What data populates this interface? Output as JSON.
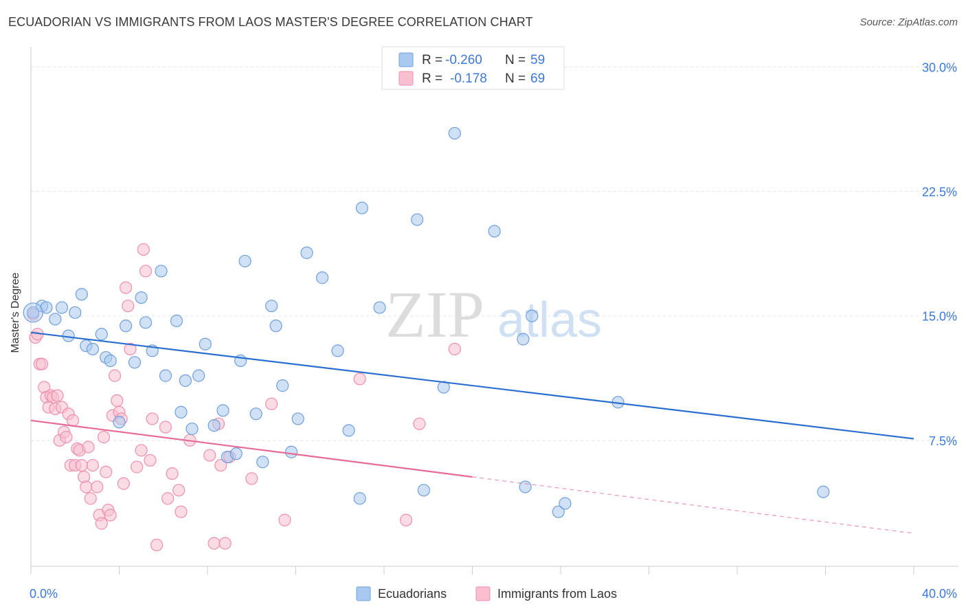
{
  "header": {
    "title": "ECUADORIAN VS IMMIGRANTS FROM LAOS MASTER'S DEGREE CORRELATION CHART",
    "source": "Source: ZipAtlas.com"
  },
  "watermark": {
    "part1": "ZIP",
    "part2": "atlas"
  },
  "colors": {
    "blue": "#6f9fdd",
    "blue_fill": "#a9c8ef",
    "blue_line": "#2a6fd0",
    "pink": "#ee8fac",
    "pink_fill": "#f7bfcf",
    "pink_line": "#e66a93",
    "tick_label": "#3c78d8"
  },
  "legend_box": {
    "rows": [
      {
        "r_label": "R =",
        "r_value": "-0.260",
        "n_label": "N =",
        "n_value": "59"
      },
      {
        "r_label": "R =",
        "r_value": "-0.178",
        "n_label": "N =",
        "n_value": "69"
      }
    ]
  },
  "chart_data": {
    "type": "scatter",
    "title": "ECUADORIAN VS IMMIGRANTS FROM LAOS MASTER'S DEGREE CORRELATION CHART",
    "xlabel": "",
    "ylabel": "Master's Degree",
    "xlim": [
      0,
      40
    ],
    "ylim": [
      0,
      30.8
    ],
    "x_tick_labels": [
      "0.0%",
      "40.0%"
    ],
    "y_ticks": [
      7.5,
      15.0,
      22.5,
      30.0
    ],
    "y_tick_labels": [
      "7.5%",
      "15.0%",
      "22.5%",
      "30.0%"
    ],
    "grid": true,
    "legend_position": "bottom-center",
    "series": [
      {
        "name": "Ecuadorians",
        "r": -0.26,
        "n": 59,
        "trend": {
          "x": [
            0,
            40
          ],
          "y": [
            14.0,
            7.6
          ]
        },
        "points": [
          [
            0.1,
            15.2
          ],
          [
            0.5,
            15.6
          ],
          [
            0.7,
            15.5
          ],
          [
            1.1,
            14.8
          ],
          [
            1.4,
            15.5
          ],
          [
            1.7,
            13.8
          ],
          [
            2.0,
            15.2
          ],
          [
            2.3,
            16.3
          ],
          [
            2.5,
            13.2
          ],
          [
            2.8,
            13.0
          ],
          [
            3.2,
            13.9
          ],
          [
            3.4,
            12.5
          ],
          [
            3.6,
            12.3
          ],
          [
            4.0,
            8.6
          ],
          [
            4.3,
            14.4
          ],
          [
            4.7,
            12.2
          ],
          [
            5.0,
            16.1
          ],
          [
            5.2,
            14.6
          ],
          [
            5.5,
            12.9
          ],
          [
            5.9,
            17.7
          ],
          [
            6.1,
            11.4
          ],
          [
            6.6,
            14.7
          ],
          [
            6.8,
            9.2
          ],
          [
            7.0,
            11.1
          ],
          [
            7.3,
            8.2
          ],
          [
            7.6,
            11.4
          ],
          [
            7.9,
            13.3
          ],
          [
            8.3,
            8.4
          ],
          [
            8.7,
            9.3
          ],
          [
            8.9,
            6.5
          ],
          [
            9.3,
            6.7
          ],
          [
            9.5,
            12.3
          ],
          [
            9.7,
            18.3
          ],
          [
            10.2,
            9.1
          ],
          [
            10.5,
            6.2
          ],
          [
            10.9,
            15.6
          ],
          [
            11.1,
            14.4
          ],
          [
            11.4,
            10.8
          ],
          [
            11.8,
            6.8
          ],
          [
            12.1,
            8.8
          ],
          [
            12.5,
            18.8
          ],
          [
            13.2,
            17.3
          ],
          [
            13.9,
            12.9
          ],
          [
            14.4,
            8.1
          ],
          [
            14.9,
            4.0
          ],
          [
            15.0,
            21.5
          ],
          [
            15.8,
            15.5
          ],
          [
            17.5,
            20.8
          ],
          [
            17.8,
            4.5
          ],
          [
            18.7,
            10.7
          ],
          [
            19.2,
            26.0
          ],
          [
            21.0,
            20.1
          ],
          [
            22.3,
            13.6
          ],
          [
            22.4,
            4.7
          ],
          [
            22.7,
            15.0
          ],
          [
            23.9,
            3.2
          ],
          [
            24.2,
            3.7
          ],
          [
            26.6,
            9.8
          ],
          [
            35.9,
            4.4
          ]
        ]
      },
      {
        "name": "Immigrants from Laos",
        "r": -0.178,
        "n": 69,
        "trend": {
          "x": [
            0,
            20
          ],
          "y": [
            8.7,
            5.3
          ]
        },
        "trend_dashed": {
          "x": [
            20,
            40
          ],
          "y": [
            5.3,
            1.9
          ]
        },
        "points": [
          [
            0.1,
            15.1
          ],
          [
            0.2,
            13.7
          ],
          [
            0.3,
            13.9
          ],
          [
            0.4,
            12.1
          ],
          [
            0.5,
            12.1
          ],
          [
            0.6,
            10.7
          ],
          [
            0.7,
            10.1
          ],
          [
            0.8,
            9.5
          ],
          [
            0.9,
            10.2
          ],
          [
            1.0,
            10.1
          ],
          [
            1.1,
            9.4
          ],
          [
            1.2,
            10.2
          ],
          [
            1.3,
            7.5
          ],
          [
            1.4,
            9.5
          ],
          [
            1.5,
            8.0
          ],
          [
            1.6,
            7.7
          ],
          [
            1.7,
            9.1
          ],
          [
            1.8,
            6.0
          ],
          [
            1.9,
            8.7
          ],
          [
            2.0,
            6.0
          ],
          [
            2.1,
            7.0
          ],
          [
            2.2,
            6.9
          ],
          [
            2.3,
            6.0
          ],
          [
            2.4,
            5.3
          ],
          [
            2.5,
            4.7
          ],
          [
            2.6,
            7.1
          ],
          [
            2.7,
            4.0
          ],
          [
            2.8,
            6.0
          ],
          [
            3.0,
            4.7
          ],
          [
            3.1,
            3.0
          ],
          [
            3.2,
            2.5
          ],
          [
            3.3,
            7.7
          ],
          [
            3.4,
            5.6
          ],
          [
            3.5,
            3.3
          ],
          [
            3.6,
            3.0
          ],
          [
            3.7,
            9.0
          ],
          [
            3.8,
            11.4
          ],
          [
            3.9,
            9.9
          ],
          [
            4.0,
            9.2
          ],
          [
            4.1,
            8.8
          ],
          [
            4.2,
            4.9
          ],
          [
            4.3,
            16.7
          ],
          [
            4.4,
            15.6
          ],
          [
            4.5,
            13.0
          ],
          [
            4.8,
            5.9
          ],
          [
            5.0,
            6.9
          ],
          [
            5.1,
            19.0
          ],
          [
            5.2,
            17.7
          ],
          [
            5.4,
            6.3
          ],
          [
            5.5,
            8.8
          ],
          [
            5.7,
            1.2
          ],
          [
            6.1,
            8.3
          ],
          [
            6.2,
            4.0
          ],
          [
            6.4,
            5.5
          ],
          [
            6.7,
            4.5
          ],
          [
            6.8,
            3.2
          ],
          [
            7.2,
            7.5
          ],
          [
            8.1,
            6.6
          ],
          [
            8.3,
            1.3
          ],
          [
            8.5,
            8.5
          ],
          [
            8.6,
            6.0
          ],
          [
            8.8,
            1.3
          ],
          [
            9.0,
            6.5
          ],
          [
            10.0,
            5.2
          ],
          [
            10.9,
            9.7
          ],
          [
            11.5,
            2.7
          ],
          [
            14.9,
            11.2
          ],
          [
            17.0,
            2.7
          ],
          [
            17.6,
            8.5
          ],
          [
            19.2,
            13.0
          ]
        ]
      }
    ]
  }
}
